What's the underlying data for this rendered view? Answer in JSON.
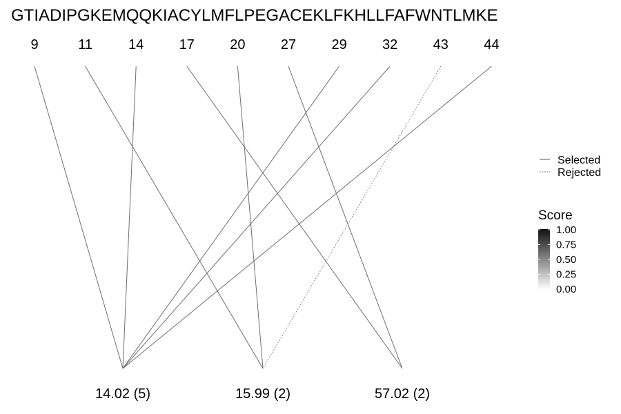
{
  "sequence": "GTIADIPGKEMQQKIACYLMFLPEGACEKLFKHLLFAFWNTLMKE",
  "positions": [
    "9",
    "11",
    "14",
    "17",
    "20",
    "27",
    "29",
    "32",
    "43",
    "44"
  ],
  "masses": [
    "14.02 (5)",
    "15.99 (2)",
    "57.02 (2)"
  ],
  "links": [
    {
      "from": "9",
      "to": "14.02 (5)",
      "status": "Selected"
    },
    {
      "from": "11",
      "to": "15.99 (2)",
      "status": "Selected"
    },
    {
      "from": "14",
      "to": "14.02 (5)",
      "status": "Selected"
    },
    {
      "from": "17",
      "to": "57.02 (2)",
      "status": "Selected"
    },
    {
      "from": "20",
      "to": "15.99 (2)",
      "status": "Selected"
    },
    {
      "from": "27",
      "to": "57.02 (2)",
      "status": "Selected"
    },
    {
      "from": "29",
      "to": "14.02 (5)",
      "status": "Selected"
    },
    {
      "from": "32",
      "to": "14.02 (5)",
      "status": "Selected"
    },
    {
      "from": "43",
      "to": "15.99 (2)",
      "status": "Rejected"
    },
    {
      "from": "44",
      "to": "14.02 (5)",
      "status": "Selected"
    }
  ],
  "legend": {
    "line_types": [
      {
        "label": "Selected",
        "style": "solid"
      },
      {
        "label": "Rejected",
        "style": "dotted"
      }
    ],
    "score": {
      "title": "Score",
      "ticks": [
        "1.00",
        "0.75",
        "0.50",
        "0.25",
        "0.00"
      ],
      "color_high": "#111111",
      "color_low": "#ffffff"
    }
  },
  "colors": {
    "line": "#6e6e6e"
  }
}
